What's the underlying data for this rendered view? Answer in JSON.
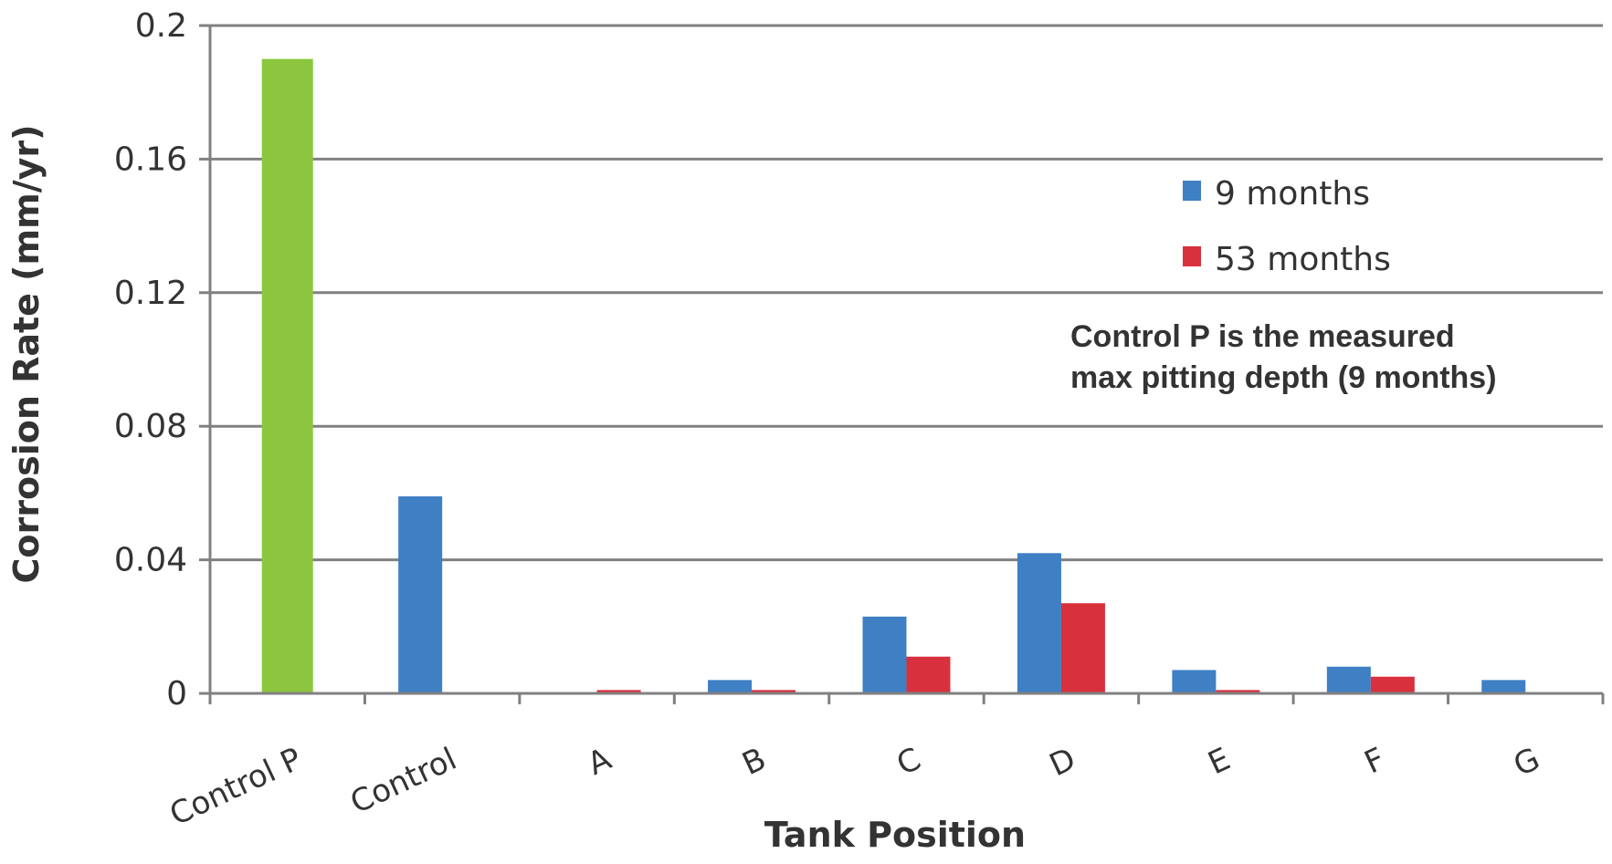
{
  "chart_data": {
    "type": "bar",
    "title": "",
    "xlabel": "Tank Position",
    "ylabel": "Corrosion Rate (mm/yr)",
    "ylim": [
      0,
      0.2
    ],
    "yticks": [
      "0",
      "0.04",
      "0.08",
      "0.12",
      "0.16",
      "0.2"
    ],
    "ytick_values": [
      0,
      0.04,
      0.08,
      0.12,
      0.16,
      0.2
    ],
    "categories": [
      "Control P",
      "Control",
      "A",
      "B",
      "C",
      "D",
      "E",
      "F",
      "G"
    ],
    "control_p": {
      "value": 0.19,
      "color": "#8cc63f"
    },
    "series": [
      {
        "name": "9 months",
        "color": "#3f7fc4",
        "values": [
          null,
          0.059,
          0,
          0.004,
          0.023,
          0.042,
          0.007,
          0.008,
          0.004
        ]
      },
      {
        "name": "53 months",
        "color": "#d9303e",
        "values": [
          null,
          0,
          0.001,
          0.001,
          0.011,
          0.027,
          0.001,
          0.005,
          0
        ]
      }
    ],
    "grid": true,
    "legend_position": "top-right",
    "annotation": [
      "Control P is the measured",
      "max pitting depth (9 months)"
    ]
  }
}
